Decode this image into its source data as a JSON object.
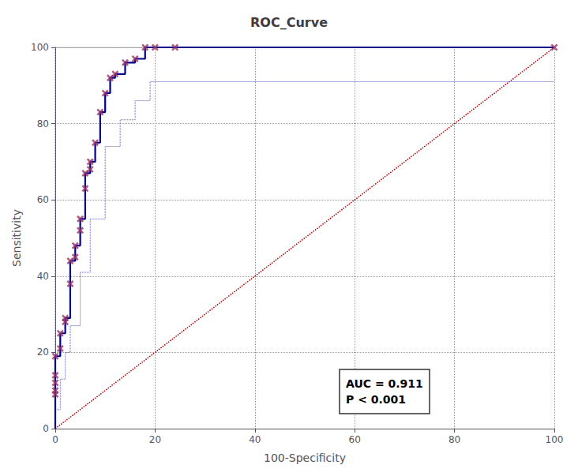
{
  "chart_data": {
    "type": "line",
    "title": "ROC_Curve",
    "xlabel": "100-Specificity",
    "ylabel": "Sensitivity",
    "annotations": [
      "AUC = 0.911\nP < 0.001"
    ],
    "xlim": [
      0,
      100
    ],
    "ylim": [
      0,
      100
    ],
    "xticks": [
      0,
      20,
      40,
      60,
      80,
      100
    ],
    "yticks": [
      0,
      20,
      40,
      60,
      80,
      100
    ],
    "grid": true,
    "series": [
      {
        "type": "line",
        "line_style": "dotted",
        "color": "#AA0000",
        "x": [
          0,
          100
        ],
        "values": [
          0,
          100
        ]
      },
      {
        "type": "step",
        "line_style": "dotted",
        "color": "#5555BB",
        "x": [
          0,
          0,
          0,
          1,
          2,
          3,
          5,
          7,
          10,
          13,
          16,
          19,
          22,
          25,
          100
        ],
        "values": [
          0,
          3,
          5,
          13,
          20,
          27,
          41,
          55,
          74,
          81,
          86,
          91,
          91,
          91,
          91
        ]
      },
      {
        "type": "step",
        "line_style": "dotted",
        "color": "#5555BB",
        "x": [
          0,
          0,
          0,
          1,
          2,
          3,
          4,
          5,
          6,
          7,
          8,
          9,
          10,
          11,
          12,
          14,
          100
        ],
        "values": [
          0,
          19,
          100,
          100,
          100,
          100,
          100,
          100,
          100,
          100,
          100,
          100,
          100,
          100,
          100,
          100,
          100
        ]
      },
      {
        "type": "step",
        "line_style": "solid",
        "color": "#00008B",
        "x": [
          0,
          0,
          0,
          0,
          0,
          0,
          1,
          1,
          1,
          2,
          2,
          3,
          3,
          4,
          4,
          5,
          5,
          6,
          6,
          7,
          7,
          8,
          9,
          10,
          11,
          12,
          14,
          16,
          18,
          20,
          24,
          100
        ],
        "values": [
          0,
          9,
          10,
          12,
          14,
          19,
          19,
          21,
          25,
          28,
          29,
          38,
          44,
          45,
          48,
          52,
          55,
          63,
          67,
          68,
          70,
          75,
          83,
          88,
          92,
          93,
          96,
          97,
          100,
          100,
          100,
          100
        ]
      },
      {
        "type": "scatter",
        "marker": "x",
        "color": "#993366",
        "x": [
          0,
          0,
          0,
          0,
          0,
          1,
          1,
          2,
          2,
          3,
          3,
          4,
          4,
          5,
          5,
          6,
          6,
          7,
          7,
          8,
          9,
          10,
          11,
          12,
          14,
          16,
          18,
          20,
          24,
          100
        ],
        "values": [
          9,
          10,
          12,
          14,
          19,
          21,
          25,
          28,
          29,
          38,
          44,
          45,
          48,
          52,
          55,
          63,
          67,
          68,
          70,
          75,
          83,
          88,
          92,
          93,
          96,
          97,
          100,
          100,
          100,
          100
        ]
      }
    ]
  }
}
